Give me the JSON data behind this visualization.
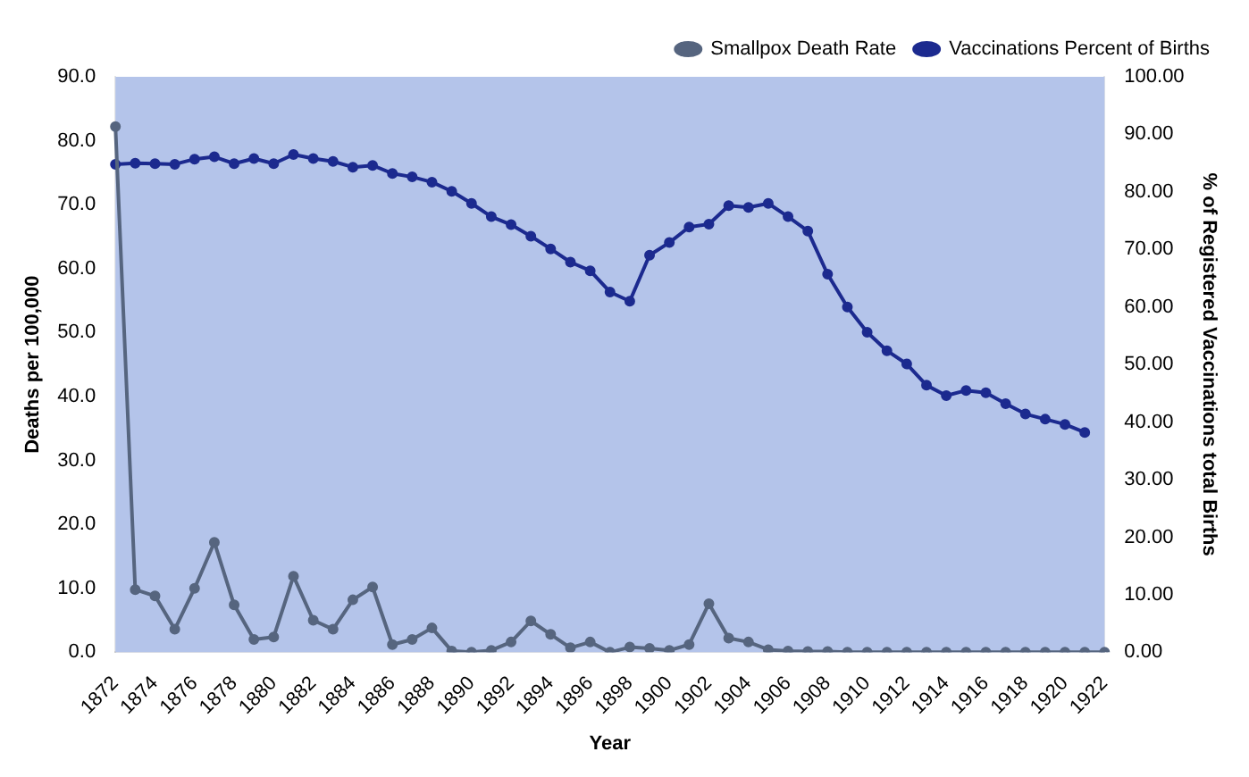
{
  "chart_data": {
    "type": "line",
    "xlabel": "Year",
    "ylabel": "Deaths per 100,000",
    "y2label": "% of Registered Vaccinations total Births",
    "categories": [
      "1872",
      null,
      "1874",
      null,
      "1876",
      null,
      "1878",
      null,
      "1880",
      null,
      "1882",
      null,
      "1884",
      null,
      "1886",
      null,
      "1888",
      null,
      "1890",
      null,
      "1892",
      null,
      "1894",
      null,
      "1896",
      null,
      "1898",
      null,
      "1900",
      null,
      "1902",
      null,
      "1904",
      null,
      "1906",
      null,
      "1908",
      null,
      "1910",
      null,
      "1912",
      null,
      "1914",
      null,
      "1916",
      null,
      "1918",
      null,
      "1920",
      null,
      "1922"
    ],
    "series": [
      {
        "name": "Smallpox Death Rate",
        "color": "#56657f",
        "values": [
          82.2,
          9.8,
          8.8,
          3.6,
          10.0,
          17.2,
          7.4,
          2.0,
          2.4,
          11.9,
          5.0,
          3.6,
          8.2,
          10.2,
          1.2,
          2.0,
          3.8,
          0.2,
          0.0,
          0.3,
          1.6,
          4.9,
          2.8,
          0.7,
          1.6,
          0.0,
          0.8,
          0.6,
          0.3,
          1.2,
          7.6,
          2.2,
          1.6,
          0.4,
          0.2,
          0.1,
          0.1,
          0.0,
          0.0,
          0.0,
          0.0,
          0.0,
          0.0,
          0.0,
          0.0,
          0.0,
          0.0,
          0.0,
          0.0,
          0.0,
          0.0
        ]
      },
      {
        "name": "Vaccinations Percent of Births",
        "color": "#1c2a8f",
        "axis": "y2",
        "values": [
          84.8,
          85.0,
          84.9,
          84.8,
          85.7,
          86.1,
          84.9,
          85.8,
          84.9,
          86.5,
          85.8,
          85.3,
          84.3,
          84.6,
          83.2,
          82.6,
          81.7,
          80.1,
          78.0,
          75.7,
          74.3,
          72.3,
          70.1,
          67.8,
          66.3,
          62.6,
          61.0,
          69.0,
          71.2,
          73.9,
          74.4,
          77.6,
          77.3,
          78.0,
          75.7,
          73.2,
          65.7,
          60.0,
          55.6,
          52.4,
          50.1,
          46.4,
          44.6,
          45.5,
          45.1,
          43.2,
          41.4,
          40.5,
          39.6,
          38.2,
          null
        ]
      }
    ],
    "ylim": [
      0,
      90
    ],
    "yticks": [
      {
        "value": 0,
        "label": "0.0"
      },
      {
        "value": 10,
        "label": "10.0"
      },
      {
        "value": 20,
        "label": "20.0"
      },
      {
        "value": 30,
        "label": "30.0"
      },
      {
        "value": 40,
        "label": "40.0"
      },
      {
        "value": 50,
        "label": "50.0"
      },
      {
        "value": 60,
        "label": "60.0"
      },
      {
        "value": 70,
        "label": "70.0"
      },
      {
        "value": 80,
        "label": "80.0"
      },
      {
        "value": 90,
        "label": "90.0"
      }
    ],
    "y2lim": [
      0,
      100
    ],
    "y2ticks": [
      {
        "value": 0,
        "label": "0.00"
      },
      {
        "value": 10,
        "label": "10.00"
      },
      {
        "value": 20,
        "label": "20.00"
      },
      {
        "value": 30,
        "label": "30.00"
      },
      {
        "value": 40,
        "label": "40.00"
      },
      {
        "value": 50,
        "label": "50.00"
      },
      {
        "value": 60,
        "label": "60.00"
      },
      {
        "value": 70,
        "label": "70.00"
      },
      {
        "value": 80,
        "label": "80.00"
      },
      {
        "value": 90,
        "label": "90.00"
      },
      {
        "value": 100,
        "label": "100.00"
      }
    ],
    "grid": false,
    "legend": "top right",
    "marker": "circle",
    "line_style": "solid"
  }
}
